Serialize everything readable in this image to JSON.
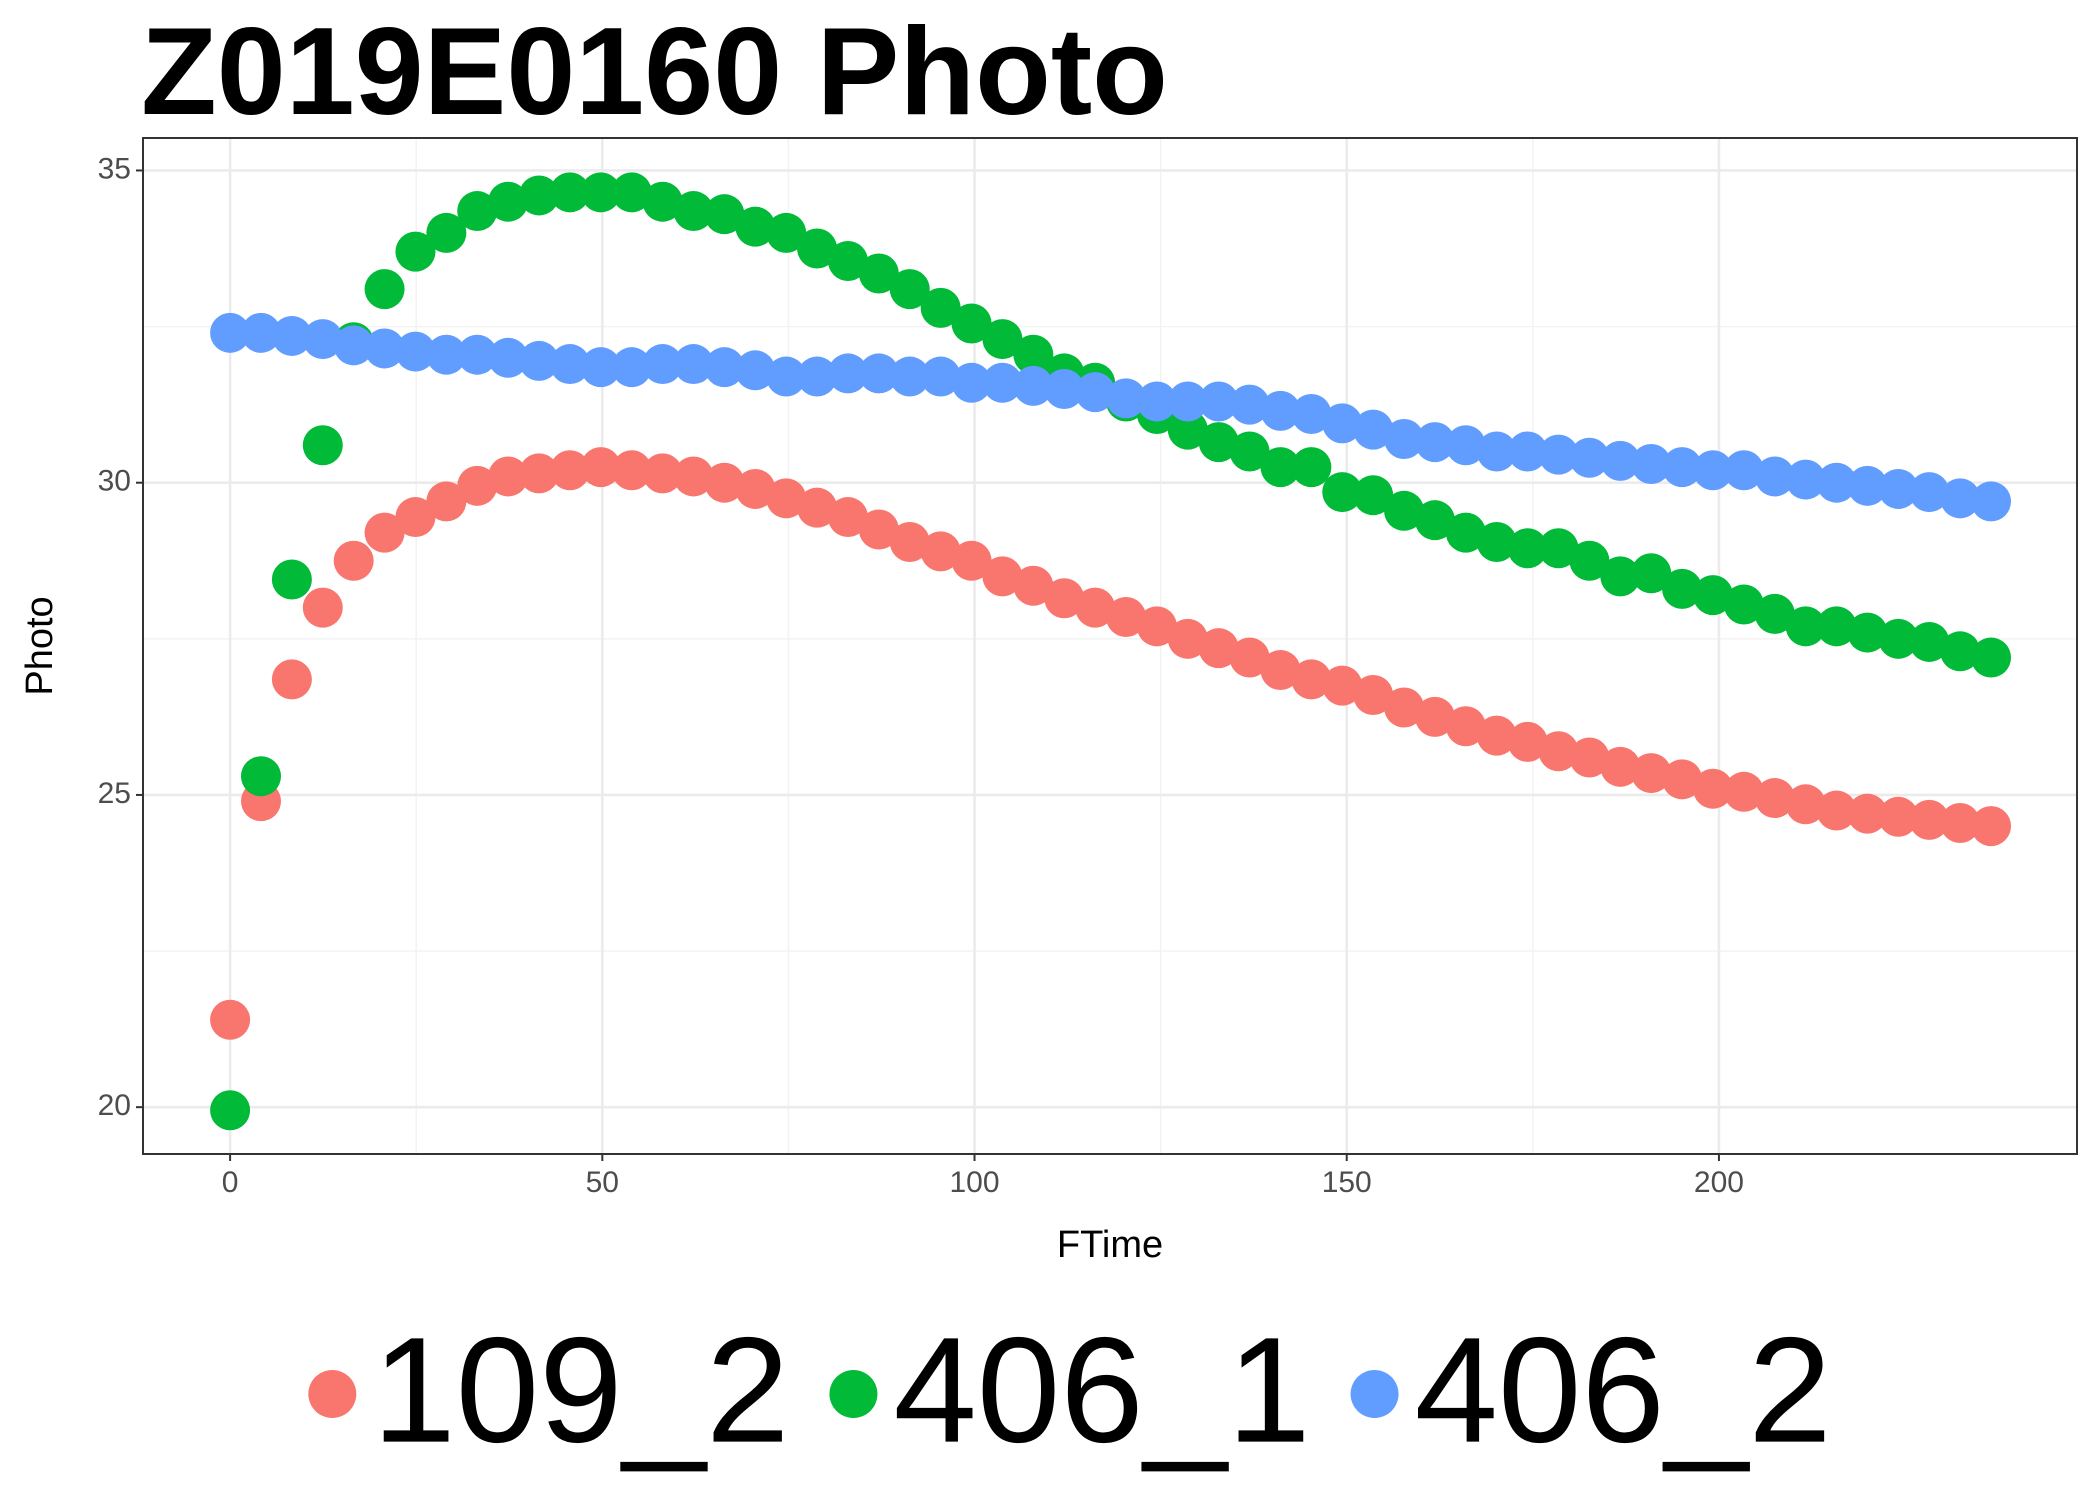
{
  "chart_data": {
    "type": "scatter",
    "title": "Z019E0160 Photo",
    "x_label": "FTime",
    "y_label": "Photo",
    "x": [
      0,
      4.15,
      8.3,
      12.45,
      16.6,
      20.75,
      24.9,
      29.05,
      33.2,
      37.35,
      41.5,
      45.65,
      49.8,
      53.95,
      58.1,
      62.25,
      66.4,
      70.55,
      74.7,
      78.85,
      83,
      87.15,
      91.3,
      95.45,
      99.6,
      103.75,
      107.9,
      112.05,
      116.2,
      120.35,
      124.5,
      128.65,
      132.8,
      136.95,
      141.1,
      145.25,
      149.4,
      153.55,
      157.7,
      161.85,
      166,
      170.15,
      174.3,
      178.45,
      182.6,
      186.75,
      190.9,
      195.05,
      199.2,
      203.35,
      207.5,
      211.65,
      215.8,
      219.95,
      224.1,
      228.25,
      232.4,
      236.55
    ],
    "series": [
      {
        "name": "109_2",
        "color": "#f8766d",
        "values": [
          21.4,
          24.9,
          26.85,
          28.0,
          28.75,
          29.2,
          29.45,
          29.7,
          29.95,
          30.1,
          30.15,
          30.2,
          30.25,
          30.2,
          30.15,
          30.1,
          30.0,
          29.9,
          29.75,
          29.6,
          29.45,
          29.25,
          29.05,
          28.9,
          28.75,
          28.5,
          28.35,
          28.15,
          28.0,
          27.85,
          27.7,
          27.5,
          27.35,
          27.2,
          27.0,
          26.85,
          26.75,
          26.6,
          26.4,
          26.25,
          26.1,
          25.95,
          25.85,
          25.7,
          25.6,
          25.45,
          25.35,
          25.25,
          25.1,
          25.05,
          24.95,
          24.85,
          24.75,
          24.7,
          24.65,
          24.6,
          24.55,
          24.5
        ]
      },
      {
        "name": "406_1",
        "color": "#00ba38",
        "values": [
          19.95,
          25.3,
          28.45,
          30.6,
          32.25,
          33.1,
          33.7,
          34.0,
          34.35,
          34.5,
          34.6,
          34.65,
          34.65,
          34.65,
          34.5,
          34.35,
          34.3,
          34.1,
          34.0,
          33.75,
          33.55,
          33.35,
          33.1,
          32.8,
          32.55,
          32.3,
          32.05,
          31.75,
          31.6,
          31.3,
          31.1,
          30.85,
          30.65,
          30.5,
          30.25,
          30.25,
          29.85,
          29.8,
          29.55,
          29.4,
          29.2,
          29.05,
          28.95,
          28.95,
          28.75,
          28.5,
          28.55,
          28.3,
          28.2,
          28.05,
          27.9,
          27.7,
          27.7,
          27.6,
          27.5,
          27.45,
          27.3,
          27.2
        ]
      },
      {
        "name": "406_2",
        "color": "#619cff",
        "values": [
          32.4,
          32.4,
          32.35,
          32.3,
          32.2,
          32.15,
          32.1,
          32.05,
          32.05,
          32.0,
          31.95,
          31.9,
          31.85,
          31.85,
          31.9,
          31.9,
          31.85,
          31.8,
          31.7,
          31.7,
          31.75,
          31.75,
          31.7,
          31.7,
          31.6,
          31.6,
          31.55,
          31.5,
          31.45,
          31.35,
          31.3,
          31.3,
          31.3,
          31.25,
          31.15,
          31.1,
          30.95,
          30.85,
          30.7,
          30.65,
          30.6,
          30.5,
          30.5,
          30.45,
          30.4,
          30.35,
          30.3,
          30.25,
          30.2,
          30.2,
          30.1,
          30.05,
          30.0,
          29.95,
          29.9,
          29.85,
          29.75,
          29.7
        ]
      }
    ],
    "xlim": [
      -11.7,
      248.1
    ],
    "ylim": [
      19.25,
      35.52
    ],
    "xticks": [
      0,
      50,
      100,
      150,
      200
    ],
    "yticks": [
      20,
      25,
      30,
      35
    ],
    "grid": true,
    "legend": "bottom"
  }
}
